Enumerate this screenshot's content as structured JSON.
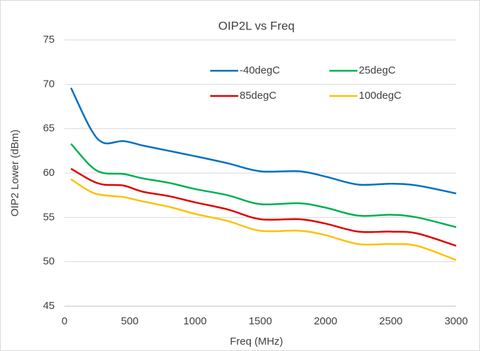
{
  "chart_data": {
    "type": "line",
    "title": "OIP2L vs Freq",
    "x_label": "Freq (MHz)",
    "y_label": "OIP2 Lower (dBm)",
    "x": [
      50,
      200,
      300,
      450,
      600,
      800,
      1000,
      1250,
      1500,
      1800,
      2000,
      2250,
      2500,
      2700,
      3000
    ],
    "series": [
      {
        "name": "-40degC",
        "color": "#0070c0",
        "values": [
          69.6,
          65,
          63.4,
          63.6,
          63.1,
          62.5,
          61.9,
          61.1,
          60.2,
          60.2,
          59.6,
          58.7,
          58.8,
          58.6,
          57.7
        ]
      },
      {
        "name": "25degC",
        "color": "#00b050",
        "values": [
          63.3,
          60.8,
          60,
          59.9,
          59.4,
          58.9,
          58.2,
          57.5,
          56.5,
          56.6,
          56.1,
          55.2,
          55.3,
          55.0,
          53.9
        ]
      },
      {
        "name": "85degC",
        "color": "#e00000",
        "values": [
          60.5,
          59.2,
          58.7,
          58.6,
          57.9,
          57.4,
          56.7,
          55.9,
          54.8,
          54.8,
          54.3,
          53.4,
          53.4,
          53.2,
          51.8
        ]
      },
      {
        "name": "100degC",
        "color": "#ffc000",
        "values": [
          59.3,
          57.9,
          57.5,
          57.3,
          56.8,
          56.2,
          55.4,
          54.6,
          53.5,
          53.5,
          53.0,
          52.0,
          52.0,
          51.8,
          50.2
        ]
      }
    ],
    "xlim": [
      0,
      3000
    ],
    "xticks": [
      0,
      500,
      1000,
      1500,
      2000,
      2500,
      3000
    ],
    "ylim": [
      45,
      75
    ],
    "yticks": [
      45,
      50,
      55,
      60,
      65,
      70,
      75
    ],
    "grid": true
  }
}
